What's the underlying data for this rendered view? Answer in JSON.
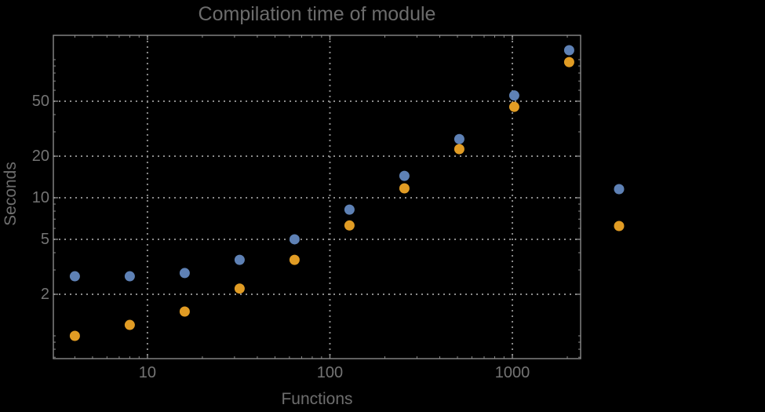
{
  "chart_data": {
    "type": "scatter",
    "title": "Compilation time of module",
    "xlabel": "Functions",
    "ylabel": "Seconds",
    "x_scale": "log",
    "y_scale": "log",
    "xlim": [
      3.05,
      2366
    ],
    "ylim": [
      0.684,
      150
    ],
    "grid": "dotted lines at labeled ticks, both axes",
    "x_ticks": [
      {
        "value": 10,
        "label": "10"
      },
      {
        "value": 100,
        "label": "100"
      },
      {
        "value": 1000,
        "label": "1000"
      }
    ],
    "y_ticks": [
      {
        "value": 2,
        "label": "2"
      },
      {
        "value": 5,
        "label": "5"
      },
      {
        "value": 10,
        "label": "10"
      },
      {
        "value": 20,
        "label": "20"
      },
      {
        "value": 50,
        "label": "50"
      }
    ],
    "x": [
      4,
      8,
      16,
      32,
      64,
      128,
      256,
      512,
      1024,
      2048
    ],
    "series": [
      {
        "name": "blue",
        "color": "#5e81b5",
        "values": [
          2.7,
          2.7,
          2.85,
          3.55,
          5.0,
          8.2,
          14.4,
          26.6,
          55,
          117
        ]
      },
      {
        "name": "orange",
        "color": "#e19c24",
        "values": [
          1.0,
          1.2,
          1.5,
          2.2,
          3.55,
          6.3,
          11.7,
          22.5,
          45.5,
          96
        ]
      }
    ],
    "legend": {
      "position": "outside-right",
      "labels_visible": false,
      "markers": [
        {
          "series": "blue",
          "color": "#5e81b5"
        },
        {
          "series": "orange",
          "color": "#e19c24"
        }
      ]
    },
    "style": {
      "background": "#000000",
      "frame_color": "#8a8a8a",
      "grid_color": "#8a8a8a",
      "tick_label_color": "#747474",
      "title_color": "#6c6c6c",
      "axis_label_color": "#6e6e6e"
    }
  }
}
